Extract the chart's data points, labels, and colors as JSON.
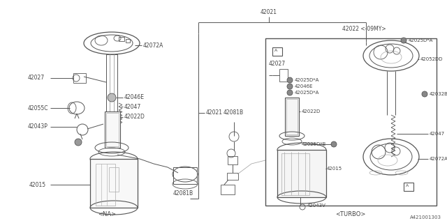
{
  "bg_color": "#ffffff",
  "line_color": "#999999",
  "dark_line": "#555555",
  "part_id": "A421001303",
  "na_label": "<NA>",
  "turbo_label": "<TURBO>",
  "figsize": [
    6.4,
    3.2
  ],
  "dpi": 100
}
